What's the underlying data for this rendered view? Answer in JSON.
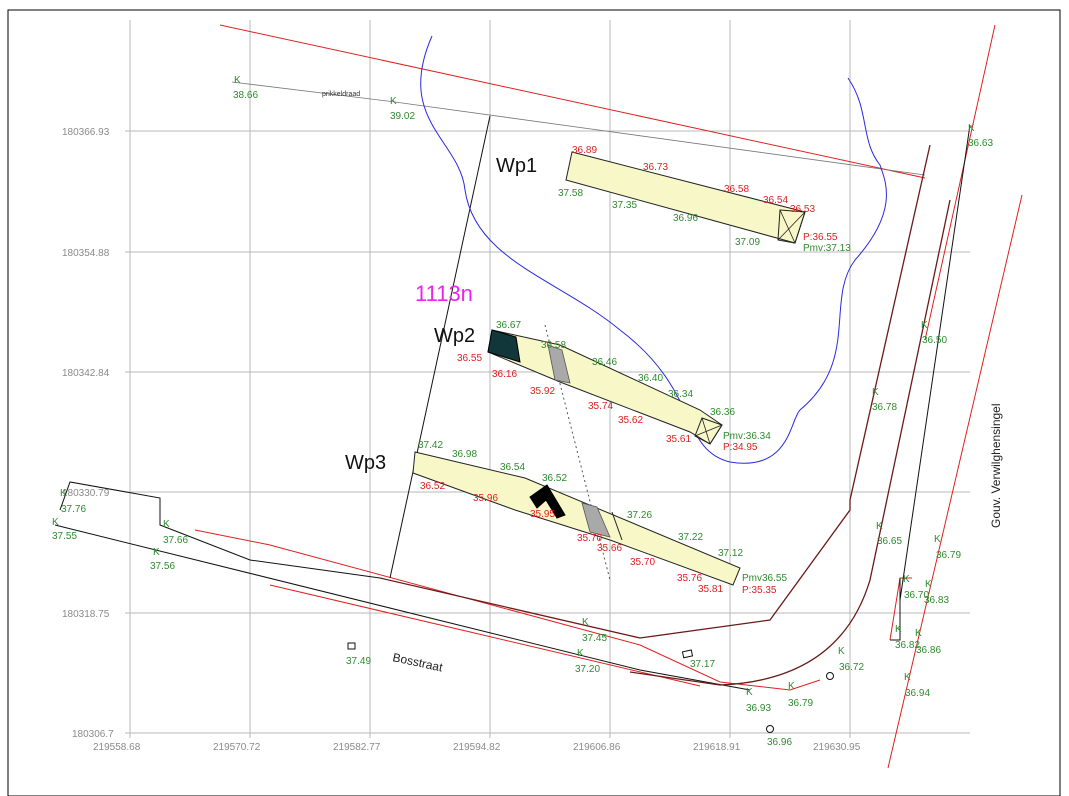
{
  "grid": {
    "y_labels": [
      "180366.93",
      "180354.88",
      "180342.84",
      "180330.79",
      "180318.75",
      "180306.7"
    ],
    "x_labels": [
      "219558.68",
      "219570.72",
      "219582.77",
      "219594.82",
      "219606.86",
      "219618.91",
      "219630.95"
    ]
  },
  "labels": {
    "parcel": "1113n",
    "street": "Bosstraat",
    "street2": "Gouv. Verwilghensingel",
    "fence": "prikkeldraad"
  },
  "trenches": {
    "wp1": {
      "name": "Wp1",
      "green": [
        "37.58",
        "37.35",
        "36.96",
        "37.09",
        "Pmv:37.13"
      ],
      "red": [
        "36.89",
        "36.73",
        "36.58",
        "36.54",
        "36.53",
        "P:36.55"
      ]
    },
    "wp2": {
      "name": "Wp2",
      "green": [
        "36.67",
        "36.58",
        "36.46",
        "36.40",
        "36.34",
        "36.36",
        "Pmv:36.34"
      ],
      "red": [
        "36.55",
        "36.16",
        "35.92",
        "35.74",
        "35.62",
        "35.61",
        "P:34.95"
      ]
    },
    "wp3": {
      "name": "Wp3",
      "green": [
        "37.42",
        "36.98",
        "36.54",
        "36.52",
        "37.26",
        "37.22",
        "37.12",
        "Pmv36.55"
      ],
      "red": [
        "36.52",
        "35.96",
        "35.95",
        "35.70",
        "35.66",
        "35.70",
        "35.76",
        "35.81",
        "P:35.35"
      ]
    }
  },
  "points": {
    "k_letter": "K",
    "values": [
      "38.66",
      "39.02",
      "36.63",
      "36.50",
      "36.78",
      "36.65",
      "36.79",
      "36.70",
      "36.83",
      "36.82",
      "36.86",
      "36.94",
      "36.72",
      "36.79",
      "36.93",
      "36.96",
      "37.45",
      "37.20",
      "37.17",
      "37.49",
      "37.76",
      "37.55",
      "37.66",
      "37.56"
    ]
  },
  "colors": {
    "grid": "#b0b0b0",
    "trench_fill": "#f7f7c8",
    "cadastral": "#e02020",
    "road": "#6b1a1a",
    "water": "#2a2ae0",
    "green_text": "#2e8b2e",
    "red_text": "#e02020",
    "parcel_text": "#ee22ee"
  }
}
